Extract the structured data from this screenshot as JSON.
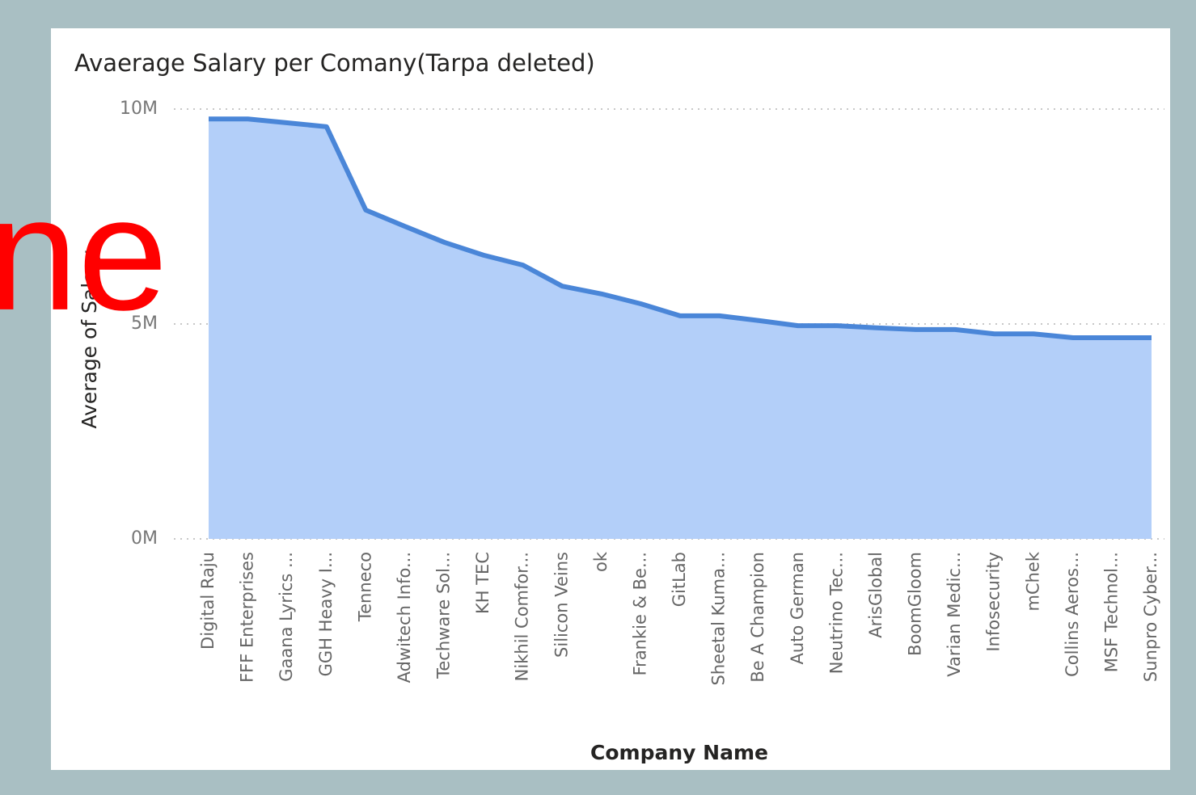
{
  "chart_data": {
    "type": "area",
    "title": "Avaerage Salary per Comany(Tarpa deleted)",
    "x_label": "Company Name",
    "y_label": "Average of Salary",
    "overlay_text": "ne",
    "categories": [
      "Digital Raju",
      "FFF Enterprises",
      "Gaana Lyrics ...",
      "GGH Heavy I...",
      "Tenneco",
      "Adwitech Info...",
      "Techware Sol...",
      "KH TEC",
      "Nikhil Comfor...",
      "Silicon Veins",
      "ok",
      "Frankie & Be...",
      "GitLab",
      "Sheetal Kuma...",
      "Be A Champion",
      "Auto German",
      "Neutrino Tec...",
      "ArisGlobal",
      "BoomGloom",
      "Varian Medic...",
      "Infosecurity",
      "mChek",
      "Collins Aeros...",
      "MSF Technol...",
      "Sunpro Cyber..."
    ],
    "values": [
      9770000,
      9770000,
      9680000,
      9590000,
      7650000,
      7270000,
      6900000,
      6600000,
      6370000,
      5880000,
      5700000,
      5470000,
      5190000,
      5190000,
      5080000,
      4960000,
      4960000,
      4910000,
      4870000,
      4870000,
      4770000,
      4770000,
      4680000,
      4680000,
      4680000
    ],
    "color": "#4a86d8",
    "fill_color": "#b3cff9",
    "ylim": [
      0,
      10000000
    ],
    "yticks": [
      {
        "value": 0,
        "label": "0M"
      },
      {
        "value": 5000000,
        "label": "5M"
      },
      {
        "value": 10000000,
        "label": "10M"
      }
    ],
    "grid": true
  }
}
